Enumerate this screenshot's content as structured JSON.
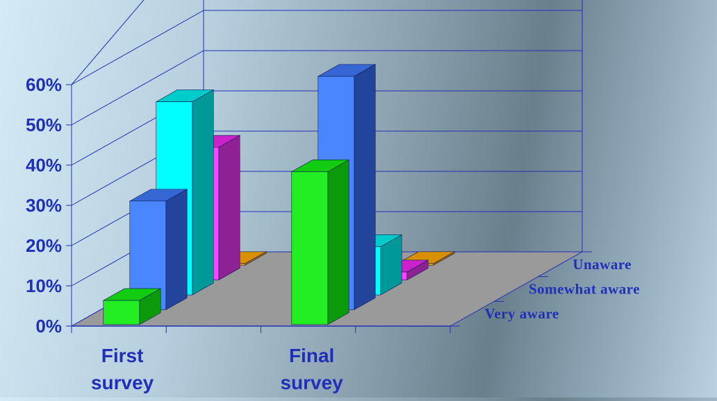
{
  "chart_data": {
    "type": "bar",
    "title": "",
    "xlabel": "",
    "ylabel": "",
    "ylim": [
      0,
      0.6
    ],
    "y_ticks": [
      "0%",
      "10%",
      "20%",
      "30%",
      "40%",
      "50%",
      "60%"
    ],
    "categories": [
      {
        "lines": [
          "First",
          "survey"
        ]
      },
      {
        "lines": [
          "Final",
          "survey"
        ]
      }
    ],
    "series": [
      {
        "name": "Very aware",
        "values": [
          0.06,
          0.38
        ]
      },
      {
        "name": "Somewhat aware",
        "values": [
          0.27,
          0.58
        ]
      },
      {
        "name": "Unaware",
        "values": [
          0.48,
          0.12
        ]
      },
      {
        "name": "",
        "values": [
          0.33,
          0.02
        ]
      },
      {
        "name": "",
        "values": [
          0.0,
          0.0
        ]
      }
    ],
    "grid": true,
    "depth_labels_placement": "right"
  },
  "colors": {
    "axis": "#1f2fb8",
    "floor": "#9a9a9a",
    "series": [
      {
        "front": "#22ee22",
        "side": "#0a9a0a",
        "top": "#11cc11"
      },
      {
        "front": "#4a86ff",
        "side": "#22449a",
        "top": "#3566d4"
      },
      {
        "front": "#00ffff",
        "side": "#009999",
        "top": "#00cccc"
      },
      {
        "front": "#ff44ff",
        "side": "#8e2294",
        "top": "#cc22cc"
      },
      {
        "front": "#f0a000",
        "side": "#b07000",
        "top": "#d89000"
      }
    ]
  }
}
